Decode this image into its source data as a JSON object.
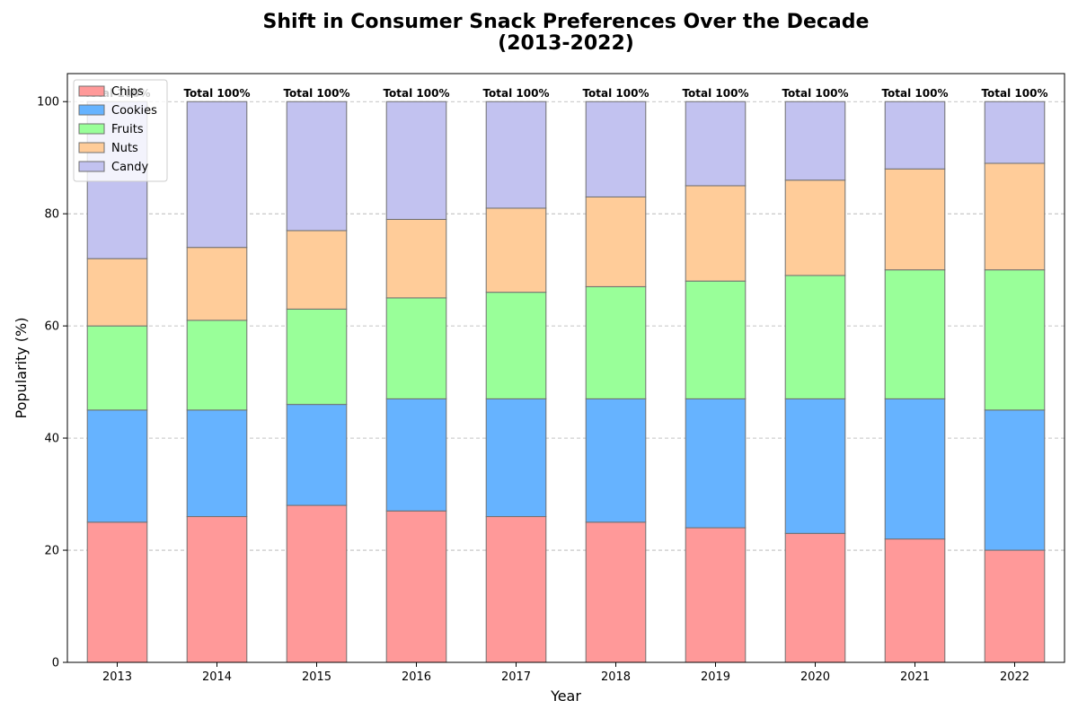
{
  "chart_data": {
    "type": "bar",
    "stacked": true,
    "title": "Shift in Consumer Snack Preferences Over the Decade\n(2013-2022)",
    "xlabel": "Year",
    "ylabel": "Popularity (%)",
    "ylim": [
      0,
      105
    ],
    "yticks": [
      0,
      20,
      40,
      60,
      80,
      100
    ],
    "grid": "y-dashed",
    "legend_position": "top-left",
    "categories": [
      "2013",
      "2014",
      "2015",
      "2016",
      "2017",
      "2018",
      "2019",
      "2020",
      "2021",
      "2022"
    ],
    "series": [
      {
        "name": "Chips",
        "color": "#ff9999",
        "values": [
          25,
          26,
          28,
          27,
          26,
          25,
          24,
          23,
          22,
          20
        ]
      },
      {
        "name": "Cookies",
        "color": "#66b3ff",
        "values": [
          20,
          19,
          18,
          20,
          21,
          22,
          23,
          24,
          25,
          25
        ]
      },
      {
        "name": "Fruits",
        "color": "#99ff99",
        "values": [
          15,
          16,
          17,
          18,
          19,
          20,
          21,
          22,
          23,
          25
        ]
      },
      {
        "name": "Nuts",
        "color": "#ffcc99",
        "values": [
          12,
          13,
          14,
          14,
          15,
          16,
          17,
          17,
          18,
          19
        ]
      },
      {
        "name": "Candy",
        "color": "#c2c2f0",
        "values": [
          28,
          26,
          23,
          21,
          19,
          17,
          15,
          14,
          12,
          11
        ]
      }
    ],
    "annotations": [
      "Total 100%",
      "Total 100%",
      "Total 100%",
      "Total 100%",
      "Total 100%",
      "Total 100%",
      "Total 100%",
      "Total 100%",
      "Total 100%",
      "Total 100%"
    ]
  }
}
